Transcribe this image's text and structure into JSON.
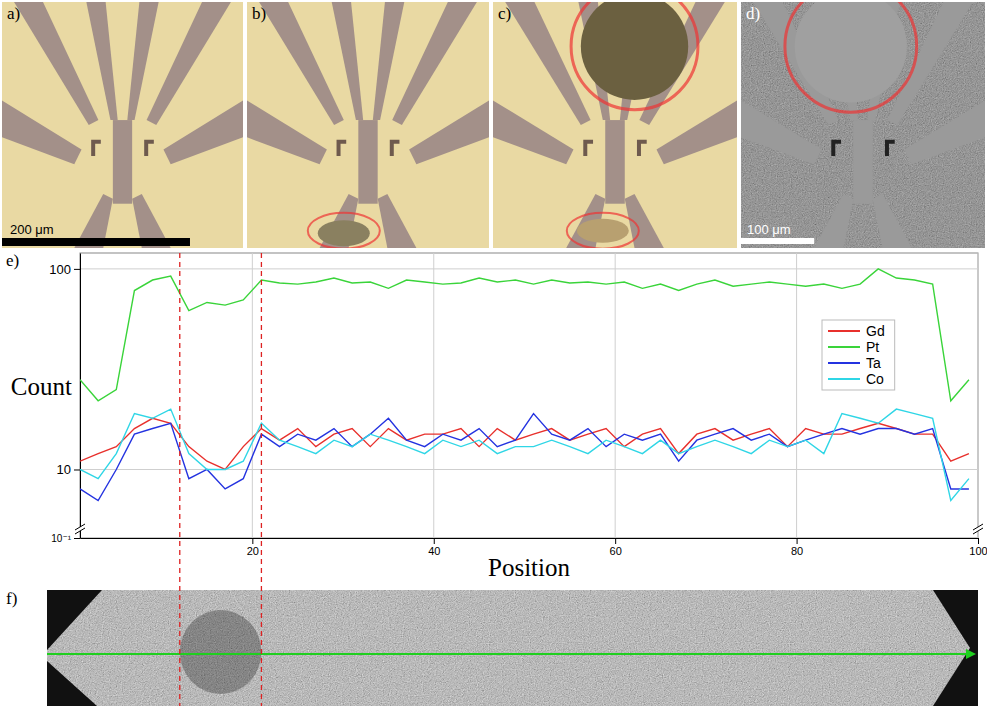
{
  "figure": {
    "panel_labels": [
      "a)",
      "b)",
      "c)",
      "d)",
      "e)",
      "f)"
    ],
    "scale_bars": [
      "200 μm",
      "100 μm"
    ]
  },
  "chart_data": {
    "type": "line",
    "x_label": "Position",
    "y_label": "Count",
    "x": [
      1,
      3,
      5,
      7,
      9,
      11,
      13,
      15,
      17,
      19,
      21,
      23,
      25,
      27,
      29,
      31,
      33,
      35,
      37,
      39,
      41,
      43,
      45,
      47,
      49,
      51,
      53,
      55,
      57,
      59,
      61,
      63,
      65,
      67,
      69,
      71,
      73,
      75,
      77,
      79,
      81,
      83,
      85,
      87,
      89,
      91,
      93,
      95,
      97,
      99
    ],
    "series": [
      {
        "name": "Gd",
        "color": "#e8302c",
        "values": [
          11,
          12,
          13,
          16,
          18,
          17,
          13,
          11,
          10,
          13,
          16,
          14,
          16,
          13,
          15,
          16,
          13,
          16,
          14,
          15,
          15,
          16,
          13,
          16,
          14,
          15,
          16,
          14,
          15,
          16,
          13,
          15,
          16,
          12,
          15,
          16,
          14,
          15,
          16,
          13,
          16,
          15,
          15,
          16,
          17,
          16,
          15,
          15,
          11,
          12
        ]
      },
      {
        "name": "Pt",
        "color": "#3ad43a",
        "values": [
          28,
          22,
          25,
          78,
          88,
          92,
          62,
          68,
          66,
          70,
          88,
          85,
          84,
          86,
          90,
          85,
          86,
          80,
          88,
          86,
          84,
          85,
          90,
          86,
          88,
          84,
          88,
          85,
          86,
          84,
          86,
          80,
          84,
          78,
          84,
          88,
          82,
          84,
          86,
          84,
          82,
          84,
          80,
          84,
          100,
          90,
          88,
          84,
          22,
          28
        ]
      },
      {
        "name": "Ta",
        "color": "#2433e0",
        "values": [
          8,
          7,
          10,
          15,
          16,
          17,
          9,
          10,
          8,
          9,
          15,
          13,
          15,
          14,
          16,
          13,
          15,
          18,
          14,
          13,
          15,
          14,
          16,
          13,
          14,
          19,
          15,
          14,
          16,
          13,
          15,
          14,
          15,
          11,
          14,
          15,
          16,
          14,
          15,
          13,
          14,
          15,
          16,
          15,
          16,
          16,
          15,
          16,
          8,
          8
        ]
      },
      {
        "name": "Co",
        "color": "#2fd6e6",
        "values": [
          10,
          9,
          12,
          19,
          18,
          20,
          12,
          10,
          10,
          11,
          17,
          14,
          13,
          12,
          14,
          13,
          15,
          14,
          13,
          12,
          14,
          13,
          14,
          12,
          13,
          13,
          14,
          13,
          12,
          14,
          13,
          12,
          14,
          12,
          13,
          14,
          13,
          12,
          14,
          13,
          14,
          12,
          19,
          18,
          17,
          20,
          19,
          18,
          7,
          9
        ]
      }
    ],
    "xlim": [
      1,
      100
    ],
    "xticks": [
      20,
      40,
      60,
      80,
      100
    ],
    "ylim": [
      0.1,
      120
    ],
    "yticks": [
      {
        "value": 0.1,
        "label": "10⁻¹"
      },
      10,
      100
    ],
    "log": "y",
    "grid": true,
    "legend": "right",
    "vlines": [
      12,
      21
    ]
  }
}
